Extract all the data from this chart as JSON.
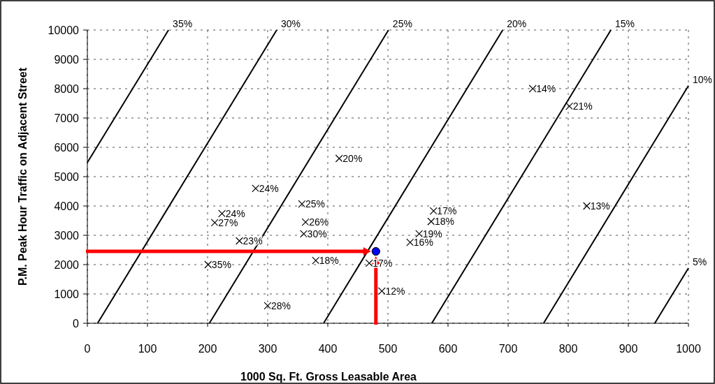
{
  "chart_data": {
    "type": "scatter",
    "xlabel": "1000 Sq. Ft. Gross Leasable Area",
    "ylabel": "P.M. Peak Hour Traffic on Adjacent Street",
    "xlim": [
      0,
      1000
    ],
    "xticks": [
      0,
      100,
      200,
      300,
      400,
      500,
      600,
      700,
      800,
      900,
      1000
    ],
    "ylim": [
      0,
      10000
    ],
    "yticks": [
      0,
      1000,
      2000,
      3000,
      4000,
      5000,
      6000,
      7000,
      8000,
      9000,
      10000
    ],
    "grid": true,
    "series": [
      {
        "type": "line",
        "name": "35%",
        "color": "#000000",
        "x": [
          0,
          135
        ],
        "values": [
          5480,
          10000
        ]
      },
      {
        "type": "line",
        "name": "30%",
        "color": "#000000",
        "x": [
          17,
          315
        ],
        "values": [
          0,
          10000
        ]
      },
      {
        "type": "line",
        "name": "25%",
        "color": "#000000",
        "x": [
          203,
          501
        ],
        "values": [
          0,
          10000
        ]
      },
      {
        "type": "line",
        "name": "20%",
        "color": "#000000",
        "x": [
          393,
          691
        ],
        "values": [
          0,
          10000
        ]
      },
      {
        "type": "line",
        "name": "15%",
        "color": "#000000",
        "x": [
          573,
          871
        ],
        "values": [
          0,
          10000
        ]
      },
      {
        "type": "line",
        "name": "10%",
        "color": "#000000",
        "x": [
          759,
          1000
        ],
        "values": [
          0,
          8100
        ]
      },
      {
        "type": "line",
        "name": "5%",
        "color": "#000000",
        "x": [
          944,
          1000
        ],
        "values": [
          0,
          1880
        ]
      },
      {
        "marker": "cross",
        "color": "#000000",
        "x": [
          280,
          224,
          212,
          253,
          201,
          300,
          357,
          363,
          360,
          380,
          419,
          469,
          490,
          576,
          572,
          552,
          537,
          741,
          802,
          831
        ],
        "values": [
          4600,
          3740,
          3430,
          2810,
          2000,
          600,
          4070,
          3450,
          3050,
          2140,
          5620,
          2050,
          1100,
          3830,
          3470,
          3050,
          2760,
          8000,
          7400,
          4000
        ]
      },
      {
        "marker": "circle",
        "color": "#0000ff",
        "x": [
          480
        ],
        "values": [
          2450
        ]
      }
    ],
    "annotations": [
      {
        "text": "24%",
        "x": 280,
        "y": 4600
      },
      {
        "text": "24%",
        "x": 224,
        "y": 3740
      },
      {
        "text": "27%",
        "x": 212,
        "y": 3430
      },
      {
        "text": "23%",
        "x": 253,
        "y": 2810
      },
      {
        "text": "35%",
        "x": 201,
        "y": 2000
      },
      {
        "text": "28%",
        "x": 300,
        "y": 600
      },
      {
        "text": "25%",
        "x": 357,
        "y": 4070
      },
      {
        "text": "26%",
        "x": 363,
        "y": 3450
      },
      {
        "text": "30%",
        "x": 360,
        "y": 3050
      },
      {
        "text": "18%",
        "x": 380,
        "y": 2140
      },
      {
        "text": "20%",
        "x": 419,
        "y": 5620
      },
      {
        "text": "17%",
        "x": 469,
        "y": 2050
      },
      {
        "text": "12%",
        "x": 490,
        "y": 1100
      },
      {
        "text": "17%",
        "x": 576,
        "y": 3830
      },
      {
        "text": "18%",
        "x": 572,
        "y": 3470
      },
      {
        "text": "19%",
        "x": 552,
        "y": 3050
      },
      {
        "text": "16%",
        "x": 537,
        "y": 2760
      },
      {
        "text": "14%",
        "x": 741,
        "y": 8000
      },
      {
        "text": "21%",
        "x": 802,
        "y": 7400
      },
      {
        "text": "13%",
        "x": 831,
        "y": 4000
      }
    ]
  }
}
